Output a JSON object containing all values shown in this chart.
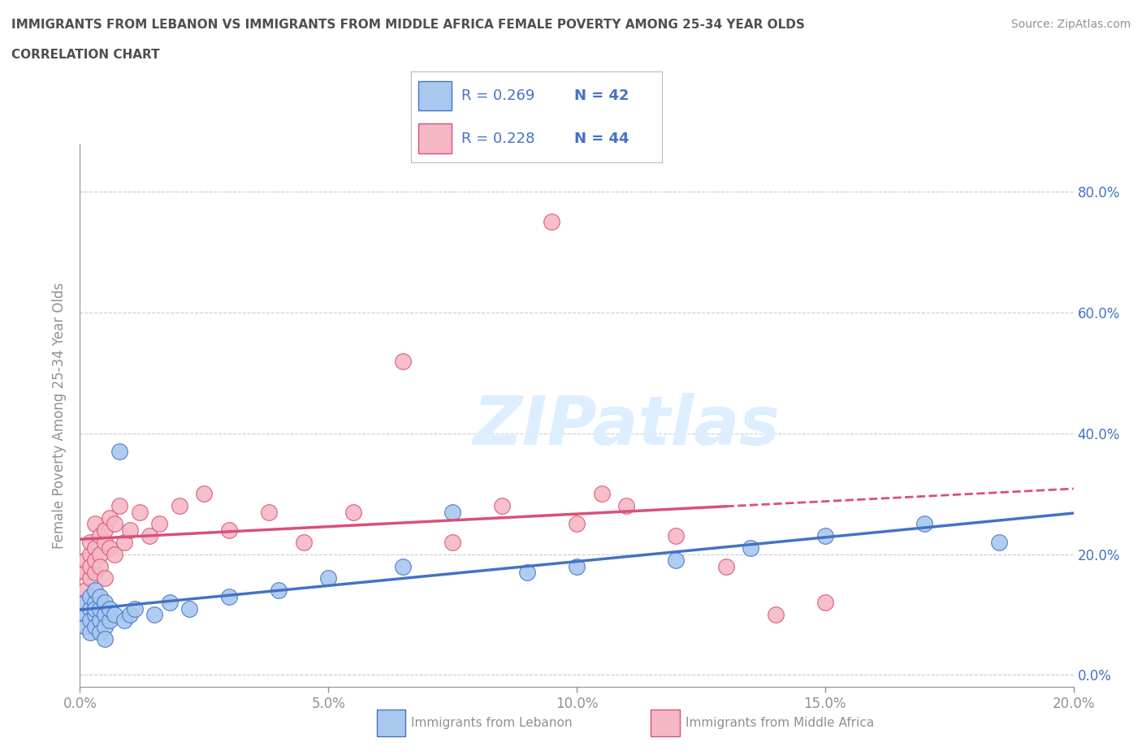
{
  "title_line1": "IMMIGRANTS FROM LEBANON VS IMMIGRANTS FROM MIDDLE AFRICA FEMALE POVERTY AMONG 25-34 YEAR OLDS",
  "title_line2": "CORRELATION CHART",
  "source": "Source: ZipAtlas.com",
  "ylabel": "Female Poverty Among 25-34 Year Olds",
  "xlim": [
    0.0,
    0.2
  ],
  "ylim": [
    -0.02,
    0.88
  ],
  "xticks": [
    0.0,
    0.05,
    0.1,
    0.15,
    0.2
  ],
  "yticks": [
    0.0,
    0.2,
    0.4,
    0.6,
    0.8
  ],
  "ytick_labels": [
    "0.0%",
    "20.0%",
    "40.0%",
    "60.0%",
    "80.0%"
  ],
  "xtick_labels": [
    "0.0%",
    "5.0%",
    "10.0%",
    "15.0%",
    "20.0%"
  ],
  "legend_R1": "R = 0.269",
  "legend_N1": "N = 42",
  "legend_R2": "R = 0.228",
  "legend_N2": "N = 44",
  "color_lebanon": "#A8C8F0",
  "color_middle_africa": "#F5B8C4",
  "color_line_lebanon": "#4472C4",
  "color_line_middle_africa": "#D94F7C",
  "label_lebanon": "Immigrants from Lebanon",
  "label_middle_africa": "Immigrants from Middle Africa",
  "background_color": "#FFFFFF",
  "watermark": "ZIPatlas",
  "watermark_color": "#DCEEFF",
  "title_color": "#505050",
  "axis_color": "#909090",
  "legend_text_color": "#4472C4",
  "grid_color": "#CCCCCC",
  "lebanon_x": [
    0.001,
    0.001,
    0.001,
    0.002,
    0.002,
    0.002,
    0.002,
    0.003,
    0.003,
    0.003,
    0.003,
    0.003,
    0.004,
    0.004,
    0.004,
    0.004,
    0.005,
    0.005,
    0.005,
    0.005,
    0.006,
    0.006,
    0.007,
    0.008,
    0.009,
    0.01,
    0.011,
    0.015,
    0.018,
    0.022,
    0.03,
    0.04,
    0.05,
    0.065,
    0.075,
    0.09,
    0.1,
    0.12,
    0.135,
    0.15,
    0.17,
    0.185
  ],
  "lebanon_y": [
    0.1,
    0.12,
    0.08,
    0.11,
    0.09,
    0.13,
    0.07,
    0.1,
    0.12,
    0.08,
    0.11,
    0.14,
    0.09,
    0.11,
    0.13,
    0.07,
    0.1,
    0.08,
    0.12,
    0.06,
    0.09,
    0.11,
    0.1,
    0.37,
    0.09,
    0.1,
    0.11,
    0.1,
    0.12,
    0.11,
    0.13,
    0.14,
    0.16,
    0.18,
    0.27,
    0.17,
    0.18,
    0.19,
    0.21,
    0.23,
    0.25,
    0.22
  ],
  "middle_africa_x": [
    0.001,
    0.001,
    0.001,
    0.002,
    0.002,
    0.002,
    0.002,
    0.003,
    0.003,
    0.003,
    0.003,
    0.004,
    0.004,
    0.004,
    0.005,
    0.005,
    0.005,
    0.006,
    0.006,
    0.007,
    0.007,
    0.008,
    0.009,
    0.01,
    0.012,
    0.014,
    0.016,
    0.02,
    0.025,
    0.03,
    0.038,
    0.045,
    0.055,
    0.065,
    0.075,
    0.085,
    0.095,
    0.1,
    0.105,
    0.11,
    0.12,
    0.13,
    0.14,
    0.15
  ],
  "middle_africa_y": [
    0.17,
    0.19,
    0.14,
    0.2,
    0.16,
    0.22,
    0.18,
    0.17,
    0.21,
    0.19,
    0.25,
    0.2,
    0.23,
    0.18,
    0.22,
    0.16,
    0.24,
    0.21,
    0.26,
    0.2,
    0.25,
    0.28,
    0.22,
    0.24,
    0.27,
    0.23,
    0.25,
    0.28,
    0.3,
    0.24,
    0.27,
    0.22,
    0.27,
    0.52,
    0.22,
    0.28,
    0.75,
    0.25,
    0.3,
    0.28,
    0.23,
    0.18,
    0.1,
    0.12
  ]
}
